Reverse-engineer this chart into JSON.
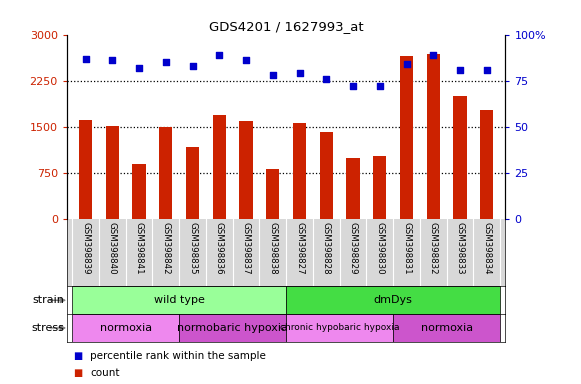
{
  "title": "GDS4201 / 1627993_at",
  "samples": [
    "GSM398839",
    "GSM398840",
    "GSM398841",
    "GSM398842",
    "GSM398835",
    "GSM398836",
    "GSM398837",
    "GSM398838",
    "GSM398827",
    "GSM398828",
    "GSM398829",
    "GSM398830",
    "GSM398831",
    "GSM398832",
    "GSM398833",
    "GSM398834"
  ],
  "counts": [
    1620,
    1510,
    900,
    1500,
    1180,
    1700,
    1590,
    820,
    1560,
    1420,
    1000,
    1020,
    2650,
    2680,
    2000,
    1780
  ],
  "percentiles": [
    87,
    86,
    82,
    85,
    83,
    89,
    86,
    78,
    79,
    76,
    72,
    72,
    84,
    89,
    81,
    81
  ],
  "bar_color": "#cc2200",
  "dot_color": "#0000cc",
  "left_ylim": [
    0,
    3000
  ],
  "right_ylim": [
    0,
    100
  ],
  "left_yticks": [
    0,
    750,
    1500,
    2250,
    3000
  ],
  "right_yticks": [
    0,
    25,
    50,
    75,
    100
  ],
  "right_yticklabels": [
    "0",
    "25",
    "50",
    "75",
    "100%"
  ],
  "hlines": [
    750,
    1500,
    2250
  ],
  "strain_labels": [
    {
      "text": "wild type",
      "start": 0,
      "end": 7,
      "color": "#99ff99"
    },
    {
      "text": "dmDys",
      "start": 8,
      "end": 15,
      "color": "#44dd44"
    }
  ],
  "stress_labels": [
    {
      "text": "normoxia",
      "start": 0,
      "end": 3,
      "color": "#ee88ee"
    },
    {
      "text": "normobaric hypoxia",
      "start": 4,
      "end": 7,
      "color": "#cc55cc"
    },
    {
      "text": "chronic hypobaric hypoxia",
      "start": 8,
      "end": 11,
      "color": "#ee88ee"
    },
    {
      "text": "normoxia",
      "start": 12,
      "end": 15,
      "color": "#cc55cc"
    }
  ],
  "stress_fontsize": [
    8,
    8,
    6.5,
    8
  ],
  "legend_count_color": "#cc2200",
  "legend_dot_color": "#0000cc",
  "bg_color": "#ffffff"
}
